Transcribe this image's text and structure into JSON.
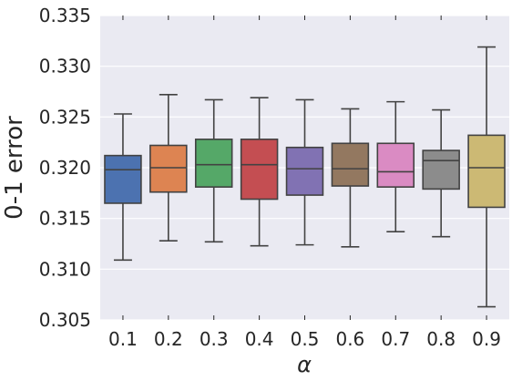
{
  "chart_data": {
    "type": "box",
    "xlabel": "α",
    "ylabel": "0-1 error",
    "ylim": [
      0.305,
      0.335
    ],
    "yticks": [
      0.305,
      0.31,
      0.315,
      0.32,
      0.325,
      0.33,
      0.335
    ],
    "ytick_labels": [
      "0.305",
      "0.310",
      "0.315",
      "0.320",
      "0.325",
      "0.330",
      "0.335"
    ],
    "categories": [
      "0.1",
      "0.2",
      "0.3",
      "0.4",
      "0.5",
      "0.6",
      "0.7",
      "0.8",
      "0.9"
    ],
    "grid": true,
    "boxes": [
      {
        "category": "0.1",
        "whisker_low": 0.3109,
        "q1": 0.3165,
        "median": 0.3198,
        "q3": 0.3212,
        "whisker_high": 0.3253,
        "color": "#4c72b0"
      },
      {
        "category": "0.2",
        "whisker_low": 0.3128,
        "q1": 0.3176,
        "median": 0.32,
        "q3": 0.3222,
        "whisker_high": 0.3272,
        "color": "#dd8452"
      },
      {
        "category": "0.3",
        "whisker_low": 0.3127,
        "q1": 0.3181,
        "median": 0.3203,
        "q3": 0.3228,
        "whisker_high": 0.3267,
        "color": "#55a868"
      },
      {
        "category": "0.4",
        "whisker_low": 0.3123,
        "q1": 0.3169,
        "median": 0.3203,
        "q3": 0.3228,
        "whisker_high": 0.3269,
        "color": "#c44e52"
      },
      {
        "category": "0.5",
        "whisker_low": 0.3124,
        "q1": 0.3173,
        "median": 0.3199,
        "q3": 0.322,
        "whisker_high": 0.3267,
        "color": "#8172b3"
      },
      {
        "category": "0.6",
        "whisker_low": 0.3122,
        "q1": 0.3182,
        "median": 0.3199,
        "q3": 0.3224,
        "whisker_high": 0.3258,
        "color": "#937860"
      },
      {
        "category": "0.7",
        "whisker_low": 0.3137,
        "q1": 0.3181,
        "median": 0.3196,
        "q3": 0.3224,
        "whisker_high": 0.3265,
        "color": "#da8bc3"
      },
      {
        "category": "0.8",
        "whisker_low": 0.3132,
        "q1": 0.3179,
        "median": 0.3207,
        "q3": 0.3217,
        "whisker_high": 0.3257,
        "color": "#8c8c8c"
      },
      {
        "category": "0.9",
        "whisker_low": 0.3063,
        "q1": 0.3161,
        "median": 0.32,
        "q3": 0.3232,
        "whisker_high": 0.3319,
        "color": "#ccb974"
      }
    ]
  }
}
